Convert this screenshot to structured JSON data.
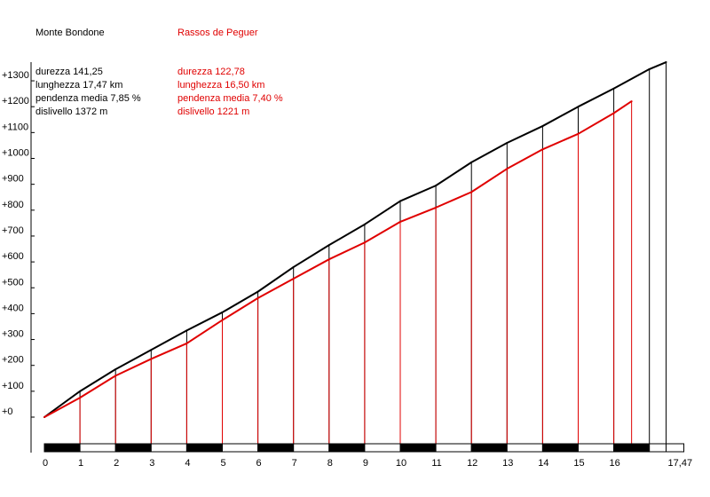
{
  "chart_data": {
    "type": "line",
    "xlim": [
      0,
      17.47
    ],
    "ylim": [
      -100,
      1400
    ],
    "grid": false,
    "y_tick_values": [
      0,
      100,
      200,
      300,
      400,
      500,
      600,
      700,
      800,
      900,
      1000,
      1100,
      1200,
      1300
    ],
    "y_tick_labels": [
      "+0",
      "+100",
      "+200",
      "+300",
      "+400",
      "+500",
      "+600",
      "+700",
      "+800",
      "+900",
      "+1000",
      "+1100",
      "+1200",
      "+1300"
    ],
    "x_tick_values": [
      0,
      1,
      2,
      3,
      4,
      5,
      6,
      7,
      8,
      9,
      10,
      11,
      12,
      13,
      14,
      15,
      16,
      17.47
    ],
    "x_tick_labels": [
      "0",
      "1",
      "2",
      "3",
      "4",
      "5",
      "6",
      "7",
      "8",
      "9",
      "10",
      "11",
      "12",
      "13",
      "14",
      "15",
      "16",
      "17,47"
    ],
    "series": [
      {
        "name": "Monte Bondone",
        "color": "#000000",
        "x": [
          0,
          1,
          2,
          3,
          4,
          5,
          6,
          7,
          8,
          9,
          10,
          11,
          12,
          13,
          14,
          15,
          16,
          17,
          17.47
        ],
        "y": [
          0,
          100,
          185,
          260,
          335,
          405,
          485,
          580,
          665,
          745,
          835,
          895,
          985,
          1060,
          1125,
          1200,
          1270,
          1345,
          1372
        ],
        "stats": [
          "durezza 141,25",
          "lunghezza 17,47 km",
          "pendenza media 7,85 %",
          "dislivello 1372 m"
        ]
      },
      {
        "name": "Rassos de Peguer",
        "color": "#e00000",
        "x": [
          0,
          1,
          2,
          3,
          4,
          5,
          6,
          7,
          8,
          9,
          10,
          11,
          12,
          13,
          14,
          15,
          16,
          16.5
        ],
        "y": [
          0,
          75,
          160,
          225,
          285,
          375,
          460,
          535,
          610,
          675,
          755,
          810,
          870,
          960,
          1035,
          1095,
          1175,
          1221
        ],
        "stats": [
          "durezza 122,78",
          "lunghezza 16,50 km",
          "pendenza media 7,40 %",
          "dislivello 1221 m"
        ]
      }
    ]
  }
}
